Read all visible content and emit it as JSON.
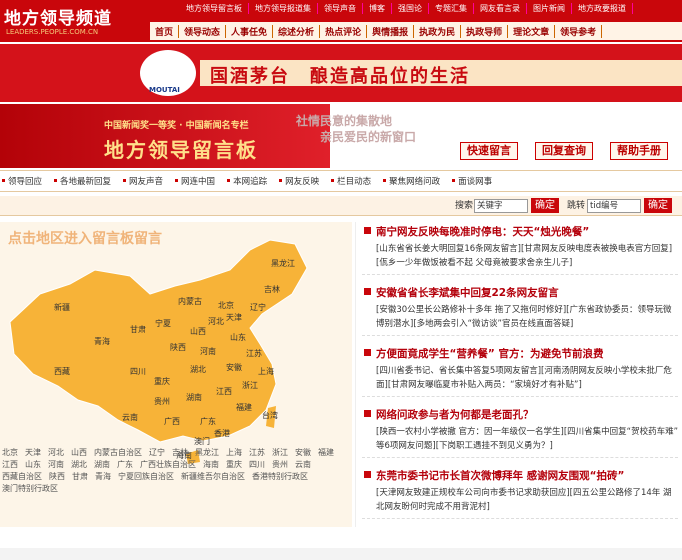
{
  "header": {
    "logo": "地方领导频道",
    "logo_sub": "LEADERS.PEOPLE.COM.CN",
    "top_links": [
      "地方领导留言板",
      "地方领导报道集",
      "领导声音",
      "博客",
      "强国论",
      "专题汇集",
      "网友看言录",
      "图片新闻",
      "地方政要报道"
    ],
    "nav": [
      "首页",
      "领导动态",
      "人事任免",
      "综述分析",
      "热点评论",
      "舆情播报",
      "执政为民",
      "执政导师",
      "理论文章",
      "领导参考"
    ]
  },
  "ad": {
    "brand": "MOUTAI",
    "slogan": "国酒茅台　酿造高品位的生活"
  },
  "board": {
    "subtitle": "中国新闻奖一等奖 · 中国新闻名专栏",
    "title": "地方领导留言板",
    "motto1": "社情民意的集散地",
    "motto2": "亲民爱民的新窗口",
    "buttons": [
      "快速留言",
      "回复查询",
      "帮助手册"
    ]
  },
  "subnav": [
    "领导回应",
    "各地最新回复",
    "网友声音",
    "网连中国",
    "本网追踪",
    "网友反映",
    "栏目动态",
    "聚焦网络问政",
    "面谈网事"
  ],
  "search": {
    "label": "搜索",
    "keyword": "关键字",
    "ok": "确定",
    "jump": "跳转",
    "tid": "tid编号",
    "ok2": "确定"
  },
  "map": {
    "title": "点击地区进入留言板留言",
    "labels": [
      "黑龙江",
      "吉林",
      "辽宁",
      "内蒙古",
      "北京",
      "天津",
      "河北",
      "山西",
      "山东",
      "新疆",
      "西藏",
      "青海",
      "甘肃",
      "宁夏",
      "陕西",
      "河南",
      "江苏",
      "安徽",
      "上海",
      "湖北",
      "四川",
      "重庆",
      "浙江",
      "江西",
      "湖南",
      "贵州",
      "云南",
      "广西",
      "广东",
      "福建",
      "台湾",
      "香港",
      "澳门",
      "海南"
    ],
    "provinces": [
      "北京",
      "天津",
      "河北",
      "山西",
      "内蒙古自治区",
      "辽宁",
      "吉林",
      "黑龙江",
      "上海",
      "江苏",
      "浙江",
      "安徽",
      "福建",
      "江西",
      "山东",
      "河南",
      "湖北",
      "湖南",
      "广东",
      "广西壮族自治区",
      "海南",
      "重庆",
      "四川",
      "贵州",
      "云南",
      "西藏自治区",
      "陕西",
      "甘肃",
      "青海",
      "宁夏回族自治区",
      "新疆维吾尔自治区",
      "香港特别行政区",
      "澳门特别行政区"
    ]
  },
  "news": [
    {
      "title": "南宁网友反映每晚准时停电：天天“烛光晚餐”",
      "links": [
        "[山东省省长姜大明回复16条网友留言]",
        "[甘肃网友反映电度表被换电表官方回复]",
        "[佤乡一少年做饭被看不起 父母竟被要求舍亲生儿子]"
      ]
    },
    {
      "title": "安徽省省长李斌集中回复22条网友留言",
      "links": [
        "[安徽30公里长公路修补十多年 拖了又拖何时修好]",
        "[广东省政协委员：领导玩微博别潜水]",
        "[多地两会引入“微访谈”官员在线直面答疑]"
      ]
    },
    {
      "title": "方便面竟成学生“营养餐” 官方：为避免节前浪费",
      "links": [
        "[四川省委书记、省长集中答复5项网友留言]",
        "[河南汤阴网友反映小学校未批厂危面]",
        "[甘肃网友曝临夏市补贴入两员：“家境好才有补贴”]"
      ]
    },
    {
      "title": "网络问政参与者为何都是老面孔？",
      "links": [
        "[陕西一农村小学被撤 官方：因一年级仅一名学生]",
        "[四川省集中回复“贺校药车难”等6项网友问题]",
        "[下岗职工遇挂不到见义勇为？]"
      ]
    },
    {
      "title": "东莞市委书记市长首次微博拜年 感谢网友围观“拍砖”",
      "links": [
        "[天津网友致建正规校车公司向市委书记求助获回应]",
        "[四五公里公路修了14年 湖北网友盼何时完成不用背泥村]"
      ]
    }
  ]
}
